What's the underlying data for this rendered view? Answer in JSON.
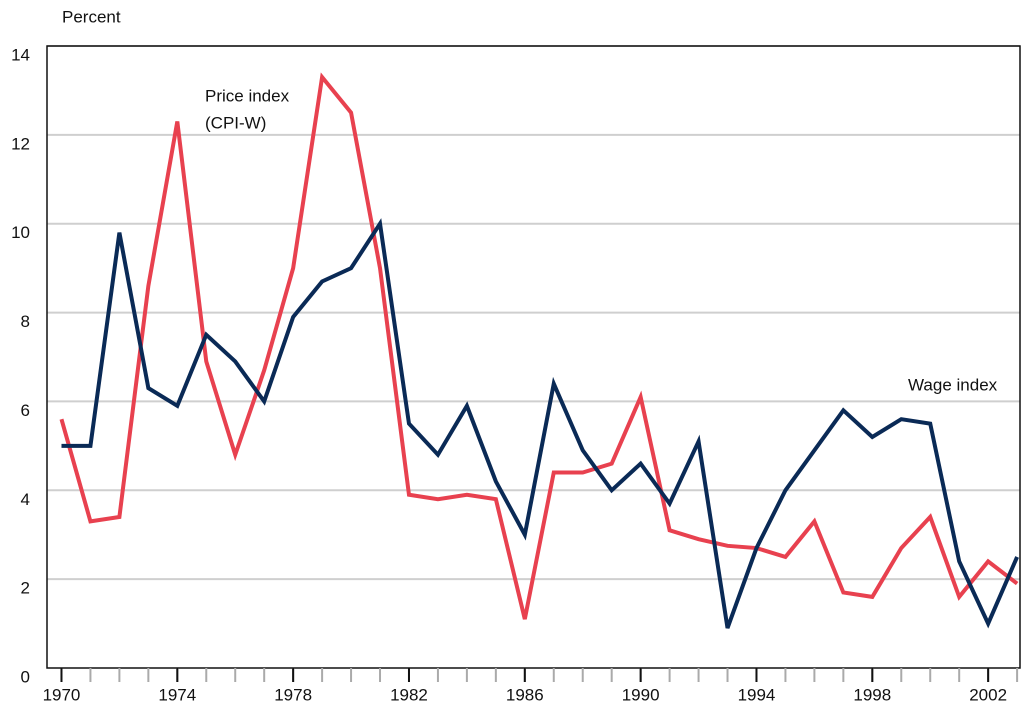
{
  "chart_data": {
    "type": "line",
    "y_label": "Percent",
    "x": [
      1970,
      1971,
      1972,
      1973,
      1974,
      1975,
      1976,
      1977,
      1978,
      1979,
      1980,
      1981,
      1982,
      1983,
      1984,
      1985,
      1986,
      1987,
      1988,
      1989,
      1990,
      1991,
      1992,
      1993,
      1994,
      1995,
      1996,
      1997,
      1998,
      1999,
      2000,
      2001,
      2002,
      2003
    ],
    "series": [
      {
        "name": "Price index (CPI-W)",
        "color": "#e8414f",
        "values": [
          5.6,
          3.3,
          3.4,
          8.6,
          12.3,
          6.9,
          4.8,
          6.7,
          9.0,
          13.3,
          12.5,
          9.0,
          3.9,
          3.8,
          3.9,
          3.8,
          1.1,
          4.4,
          4.4,
          4.6,
          6.1,
          3.1,
          2.9,
          2.75,
          2.7,
          2.5,
          3.3,
          1.7,
          1.6,
          2.7,
          3.4,
          1.6,
          2.4,
          1.9
        ]
      },
      {
        "name": "Wage index",
        "color": "#0a2a56",
        "values": [
          5.0,
          5.0,
          9.8,
          6.3,
          5.9,
          7.5,
          6.9,
          6.0,
          7.9,
          8.7,
          9.0,
          10.0,
          5.5,
          4.8,
          5.9,
          4.2,
          3.0,
          6.4,
          4.9,
          4.0,
          4.6,
          3.7,
          5.1,
          0.9,
          2.7,
          4.0,
          4.9,
          5.8,
          5.2,
          5.6,
          5.5,
          2.4,
          1.0,
          2.5
        ]
      }
    ],
    "annotations": [
      [
        "Price index",
        "(CPI-W)"
      ],
      [
        "Wage index"
      ]
    ],
    "xlim": [
      1969.5,
      2003.1
    ],
    "xticks": [
      1970,
      1974,
      1978,
      1982,
      1986,
      1990,
      1994,
      1998,
      2002
    ],
    "ylim": [
      0,
      14
    ],
    "yticks": [
      0,
      2,
      4,
      6,
      8,
      10,
      12,
      14
    ],
    "grid": true
  }
}
